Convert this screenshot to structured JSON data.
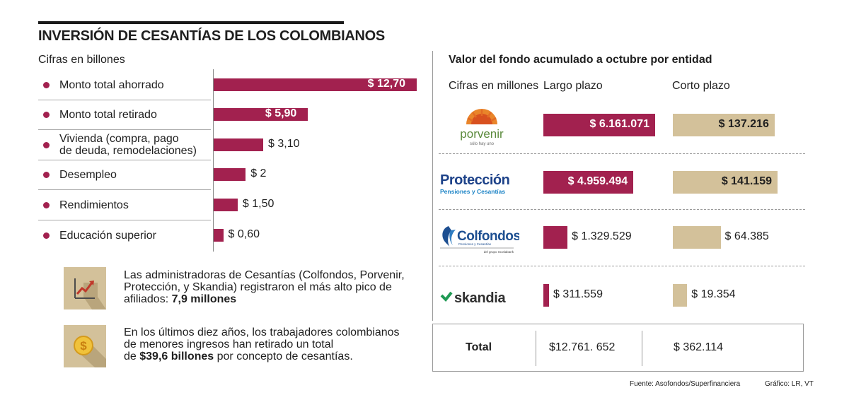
{
  "title": "INVERSIÓN DE CESANTÍAS DE LOS COLOMBIANOS",
  "left_subtitle": "Cifras en billones",
  "chart_data": [
    {
      "type": "bar",
      "orientation": "horizontal",
      "unit": "billones",
      "categories": [
        "Monto total ahorrado",
        "Monto total retirado",
        "Vivienda (compra, pago de deuda, remodelaciones)",
        "Desempleo",
        "Rendimientos",
        "Educación superior"
      ],
      "category_lines": [
        [
          "Monto total ahorrado"
        ],
        [
          "Monto total retirado"
        ],
        [
          "Vivienda (compra, pago",
          "de deuda, remodelaciones)"
        ],
        [
          "Desempleo"
        ],
        [
          "Rendimientos"
        ],
        [
          "Educación superior"
        ]
      ],
      "values": [
        12.7,
        5.9,
        3.1,
        2,
        1.5,
        0.6
      ],
      "value_labels": [
        "$ 12,70",
        "$ 5,90",
        "$ 3,10",
        "$ 2",
        "$ 1,50",
        "$ 0,60"
      ],
      "title": "",
      "xlabel": "",
      "ylabel": "",
      "xlim": [
        0,
        12.7
      ],
      "grid": false,
      "colors": {
        "bar": "#a2214f"
      }
    },
    {
      "type": "bar",
      "orientation": "horizontal",
      "title": "Valor del fondo acumulado a octubre por entidad",
      "unit_label": "Cifras en millones",
      "categories": [
        "porvenir",
        "Protección",
        "Colfondos",
        "skandia"
      ],
      "series": [
        {
          "name": "Largo plazo",
          "values": [
            6161071,
            4959494,
            1329529,
            311559
          ],
          "value_labels": [
            "$ 6.161.071",
            "$ 4.959.494",
            "$ 1.329.529",
            "$ 311.559"
          ],
          "color": "#a2214f"
        },
        {
          "name": "Corto plazo",
          "values": [
            137216,
            141159,
            64385,
            19354
          ],
          "value_labels": [
            "$ 137.216",
            "$ 141.159",
            "$ 64.385",
            "$ 19.354"
          ],
          "color": "#d3c19a"
        }
      ],
      "totals": {
        "label": "Total",
        "largo": "$12.761. 652",
        "corto": "$ 362.114"
      },
      "grid": false
    }
  ],
  "info": [
    {
      "icon": "chart-growth-icon",
      "lines": [
        "Las administradoras de Cesantías (Colfondos, Porvenir,",
        "Protección, y Skandia) registraron el más alto pico de"
      ],
      "last_plain": "afiliados: ",
      "last_bold": "7,9 millones"
    },
    {
      "icon": "dollar-coin-icon",
      "lines": [
        "En los últimos diez años, los trabajadores colombianos",
        "de menores ingresos han retirado un total"
      ],
      "last_plain_pre": "de ",
      "last_bold": "$39,6 billones",
      "last_plain": " por concepto de cesantías."
    }
  ],
  "logos": {
    "porvenir": {
      "name": "porvenir",
      "tagline": "sólo hay uno"
    },
    "proteccion": {
      "name": "Protección",
      "tagline": "Pensiones y Cesantías"
    },
    "colfondos": {
      "name": "Colfondos",
      "tagline": "Pensiones y Cesantías",
      "group": "del grupo Scotiabank"
    },
    "skandia": {
      "name": "skandia"
    }
  },
  "footer": {
    "source": "Fuente: Asofondos/Superfinanciera",
    "credit": "Gráfico: LR, VT"
  }
}
